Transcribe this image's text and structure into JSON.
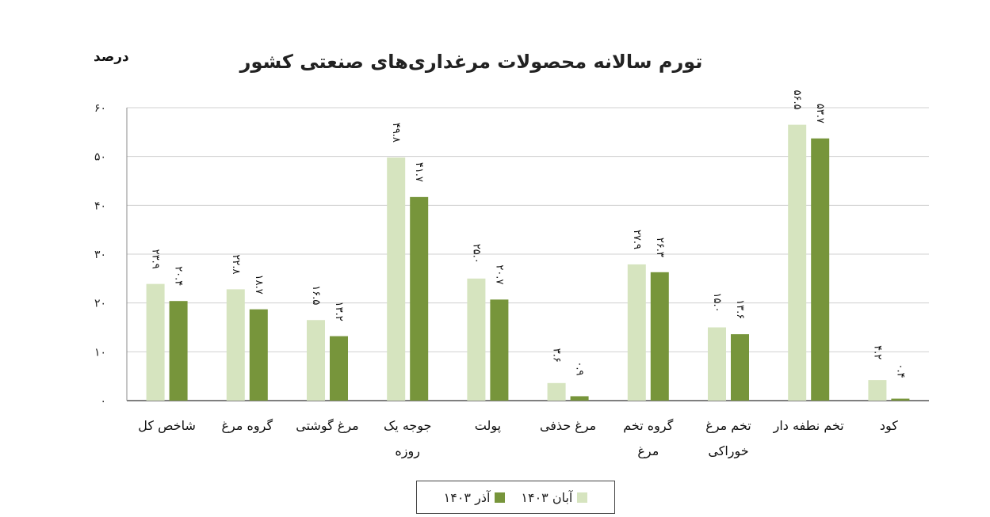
{
  "chart_data": {
    "type": "bar",
    "title": "تورم سالانه محصولات مرغداری‌های صنعتی کشور",
    "ylabel": "درصد",
    "ylim": [
      0,
      60
    ],
    "yticks": [
      "۰",
      "۱۰",
      "۲۰",
      "۳۰",
      "۴۰",
      "۵۰",
      "۶۰"
    ],
    "grid": true,
    "legend_position": "bottom-center",
    "categories": [
      [
        "شاخص کل"
      ],
      [
        "گروه مرغ"
      ],
      [
        "مرغ گوشتی"
      ],
      [
        "جوجه یک",
        "روزه"
      ],
      [
        "پولت"
      ],
      [
        "مرغ حذفی"
      ],
      [
        "گروه تخم",
        "مرغ"
      ],
      [
        "تخم مرغ",
        "خوراکی"
      ],
      [
        "تخم نطفه دار"
      ],
      [
        "کود"
      ]
    ],
    "series": [
      {
        "name": "آبان ۱۴۰۳",
        "color": "#d6e4bf",
        "values": [
          23.9,
          22.8,
          16.5,
          49.8,
          25.0,
          3.6,
          27.9,
          15.0,
          56.5,
          4.2
        ],
        "labels": [
          "۲۳.۹",
          "۲۲.۸",
          "۱۶.۵",
          "۴۹.۸",
          "۲۵.۰",
          "۳.۶",
          "۲۷.۹",
          "۱۵.۰",
          "۵۶.۵",
          "۴.۲"
        ]
      },
      {
        "name": "آذر ۱۴۰۳",
        "color": "#77953b",
        "values": [
          20.4,
          18.7,
          13.2,
          41.7,
          20.7,
          0.9,
          26.3,
          13.6,
          53.7,
          0.4
        ],
        "labels": [
          "۲۰.۴",
          "۱۸.۷",
          "۱۳.۲",
          "۴۱.۷",
          "۲۰.۷",
          "۰.۹",
          "۲۶.۳",
          "۱۳.۶",
          "۵۳.۷",
          "۰.۴"
        ]
      }
    ]
  }
}
